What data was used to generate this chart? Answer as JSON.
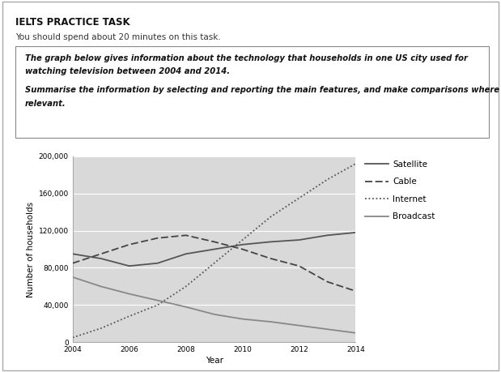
{
  "title_main": "IELTS PRACTICE TASK",
  "subtitle": "You should spend about 20 minutes on this task.",
  "prompt_line1": "The graph below gives information about the technology that households in one US city used for",
  "prompt_line2": "watching television between 2004 and 2014.",
  "prompt_line3": "Summarise the information by selecting and reporting the main features, and make comparisons where",
  "prompt_line4": "relevant.",
  "years": [
    2004,
    2005,
    2006,
    2007,
    2008,
    2009,
    2010,
    2011,
    2012,
    2013,
    2014
  ],
  "satellite": [
    95000,
    90000,
    82000,
    85000,
    95000,
    100000,
    105000,
    108000,
    110000,
    115000,
    118000
  ],
  "cable": [
    85000,
    95000,
    105000,
    112000,
    115000,
    108000,
    100000,
    90000,
    82000,
    65000,
    55000
  ],
  "internet": [
    5000,
    15000,
    28000,
    40000,
    60000,
    85000,
    110000,
    135000,
    155000,
    175000,
    192000
  ],
  "broadcast": [
    70000,
    60000,
    52000,
    45000,
    38000,
    30000,
    25000,
    22000,
    18000,
    14000,
    10000
  ],
  "satellite_color": "#555555",
  "cable_color": "#444444",
  "internet_color": "#555555",
  "broadcast_color": "#888888",
  "ylabel": "Number of households",
  "xlabel": "Year",
  "ylim": [
    0,
    200000
  ],
  "yticks": [
    0,
    40000,
    80000,
    120000,
    160000,
    200000
  ],
  "ytick_labels": [
    "0",
    "40,000",
    "80,000",
    "120,000",
    "160,000",
    "200,000"
  ],
  "xticks": [
    2004,
    2006,
    2008,
    2010,
    2012,
    2014
  ],
  "plot_bg": "#d9d9d9",
  "outer_border_color": "#aaaaaa",
  "inner_border_color": "#888888",
  "text_color": "#111111"
}
